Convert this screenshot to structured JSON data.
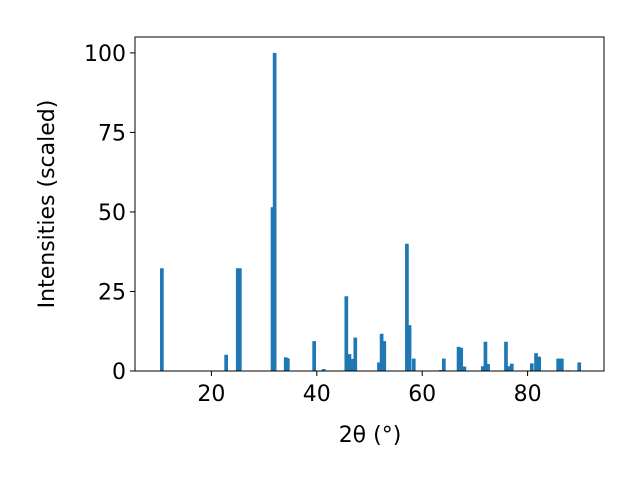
{
  "chart_data": {
    "type": "bar",
    "xlabel": "2θ (°)",
    "ylabel": "Intensities (scaled)",
    "xlim": [
      5.5,
      94.5
    ],
    "ylim": [
      0,
      105
    ],
    "xticks": [
      20,
      40,
      60,
      80
    ],
    "yticks": [
      0,
      25,
      50,
      75,
      100
    ],
    "bar_color": "#1f77b4",
    "bar_width": 0.7,
    "grid": false,
    "points": [
      {
        "x": 10.6,
        "y": 32.3
      },
      {
        "x": 22.8,
        "y": 5.1
      },
      {
        "x": 25.0,
        "y": 32.3
      },
      {
        "x": 25.4,
        "y": 32.3
      },
      {
        "x": 31.6,
        "y": 51.5
      },
      {
        "x": 32.0,
        "y": 100
      },
      {
        "x": 34.1,
        "y": 4.3
      },
      {
        "x": 34.5,
        "y": 4.0
      },
      {
        "x": 39.5,
        "y": 9.4
      },
      {
        "x": 41.3,
        "y": 0.6
      },
      {
        "x": 45.6,
        "y": 23.5
      },
      {
        "x": 46.2,
        "y": 5.3
      },
      {
        "x": 46.8,
        "y": 3.8
      },
      {
        "x": 47.3,
        "y": 10.5
      },
      {
        "x": 51.8,
        "y": 2.7
      },
      {
        "x": 52.3,
        "y": 11.7
      },
      {
        "x": 52.8,
        "y": 9.4
      },
      {
        "x": 57.1,
        "y": 40.0
      },
      {
        "x": 57.6,
        "y": 14.4
      },
      {
        "x": 58.4,
        "y": 3.9
      },
      {
        "x": 63.5,
        "y": 0.3
      },
      {
        "x": 64.1,
        "y": 3.9
      },
      {
        "x": 66.9,
        "y": 7.6
      },
      {
        "x": 67.4,
        "y": 7.3
      },
      {
        "x": 68.0,
        "y": 1.4
      },
      {
        "x": 71.5,
        "y": 1.5
      },
      {
        "x": 72.0,
        "y": 9.2
      },
      {
        "x": 72.5,
        "y": 2.2
      },
      {
        "x": 75.9,
        "y": 9.2
      },
      {
        "x": 76.5,
        "y": 1.5
      },
      {
        "x": 77.0,
        "y": 2.3
      },
      {
        "x": 80.8,
        "y": 2.4
      },
      {
        "x": 81.6,
        "y": 5.6
      },
      {
        "x": 82.2,
        "y": 4.5
      },
      {
        "x": 85.8,
        "y": 3.9
      },
      {
        "x": 86.5,
        "y": 3.9
      },
      {
        "x": 87.7,
        "y": 0.2
      },
      {
        "x": 89.8,
        "y": 2.7
      }
    ]
  }
}
